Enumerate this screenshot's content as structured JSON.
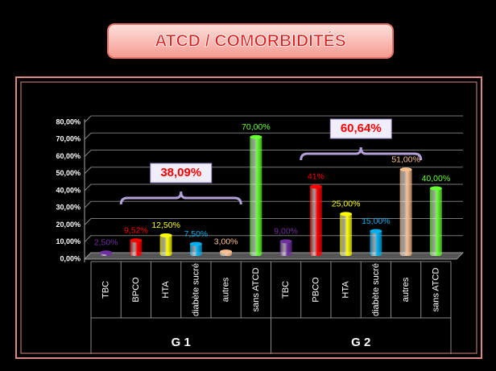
{
  "chart_data": {
    "type": "bar",
    "title": "ATCD / COMORBIDITÉS",
    "categories": [
      "TBC",
      "BPCO",
      "HTA",
      "diabète sucré",
      "autres",
      "sans ATCD",
      "TBC",
      "PBCO",
      "HTA",
      "diabète sucré",
      "autres",
      "sans ATCD"
    ],
    "groups": [
      "G 1",
      "G 2"
    ],
    "values": [
      2.5,
      9.52,
      12.5,
      7.5,
      3.0,
      70.0,
      9.0,
      41,
      25.0,
      15.0,
      51.0,
      40.0
    ],
    "value_labels": [
      "2,50%",
      "9,52%",
      "12,50%",
      "7,50%",
      "3,00%",
      "70,00%",
      "9,00%",
      "41%",
      "25,00%",
      "15,00%",
      "51,00%",
      "40,00%"
    ],
    "colors": [
      "#7030a0",
      "#ff0000",
      "#ffff00",
      "#00b0f0",
      "#fac090",
      "#66ff33",
      "#7030a0",
      "#ff0000",
      "#ffff00",
      "#00b0f0",
      "#fac090",
      "#66ff33"
    ],
    "annotations": [
      "38,09%",
      "60,64%"
    ],
    "ylim": [
      0,
      80
    ],
    "yticks": [
      {
        "value": 0,
        "label": "0,00%"
      },
      {
        "value": 10,
        "label": "10,00%"
      },
      {
        "value": 20,
        "label": "20,00%"
      },
      {
        "value": 30,
        "label": "30,00%"
      },
      {
        "value": 40,
        "label": "40,00%"
      },
      {
        "value": 50,
        "label": "50,00%"
      },
      {
        "value": 60,
        "label": "60,00%"
      },
      {
        "value": 70,
        "label": "70,00%"
      },
      {
        "value": 80,
        "label": "80,00%"
      }
    ],
    "grid": true
  }
}
